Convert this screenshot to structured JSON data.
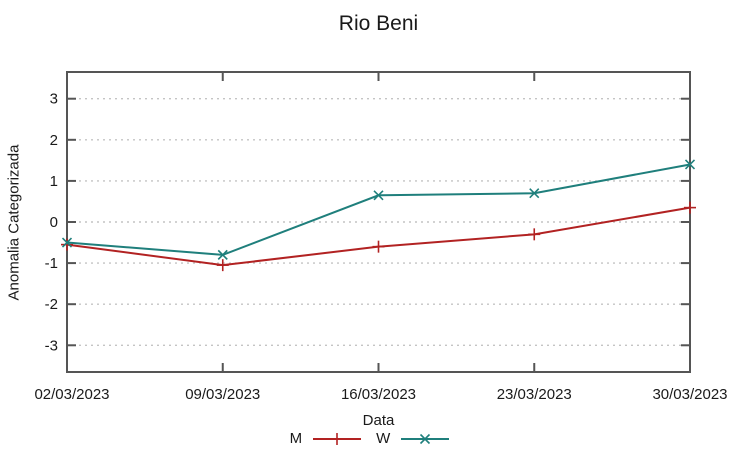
{
  "chart": {
    "title": "Rio Beni",
    "xlabel": "Data",
    "ylabel": "Anomalia Categorizada"
  },
  "chart_data": {
    "type": "line",
    "title": "Rio Beni",
    "xlabel": "Data",
    "ylabel": "Anomalia Categorizada",
    "categories": [
      "02/03/2023",
      "09/03/2023",
      "16/03/2023",
      "23/03/2023",
      "30/03/2023"
    ],
    "series": [
      {
        "name": "M",
        "color": "#b22222",
        "marker": "plus",
        "values": [
          -0.55,
          -1.05,
          -0.6,
          -0.3,
          0.35
        ]
      },
      {
        "name": "W",
        "color": "#1f7f7c",
        "marker": "cross",
        "values": [
          -0.5,
          -0.8,
          0.65,
          0.7,
          1.4
        ]
      }
    ],
    "yticks": [
      -3,
      -2,
      -1,
      0,
      1,
      2,
      3
    ],
    "ylim": [
      -3.65,
      3.65
    ],
    "grid": "horizontal-dashed",
    "legend_position": "bottom-center",
    "colors": {
      "border": "#555555",
      "grid": "#c4c4c4",
      "text": "#1a1a1a"
    }
  }
}
